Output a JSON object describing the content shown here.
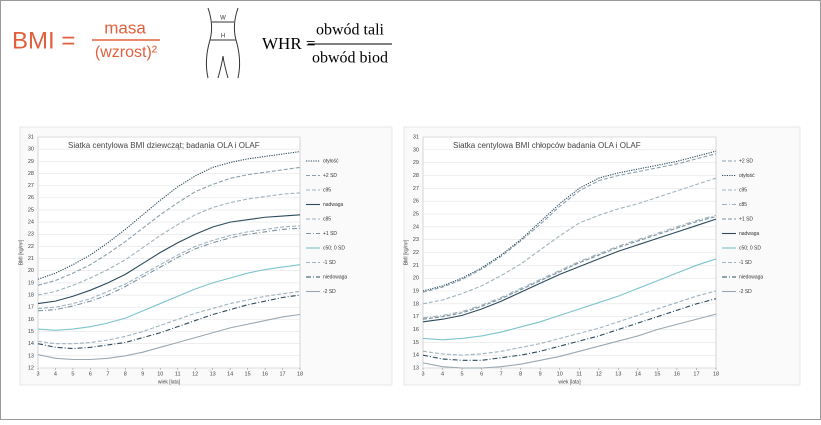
{
  "formulas": {
    "bmi_label": "BMI =",
    "bmi_numerator": "masa",
    "bmi_denominator": "(wzrost)²",
    "whr_label": "WHR =",
    "whr_numerator": "obwód tali",
    "whr_denominator": "obwód biod"
  },
  "chart_data": [
    {
      "type": "line",
      "title": "Siatka centylowa BMI dziewcząt; badania OLA i OLAF",
      "x_label": "wiek [lata]",
      "y_label": "BMI [kg/m²]",
      "x": [
        3,
        4,
        5,
        6,
        7,
        8,
        9,
        10,
        11,
        12,
        13,
        14,
        15,
        16,
        17,
        18
      ],
      "xlim": [
        3,
        18
      ],
      "xticks": [
        3,
        4,
        5,
        6,
        7,
        8,
        9,
        10,
        11,
        12,
        13,
        14,
        15,
        16,
        17,
        18
      ],
      "ylim": [
        12,
        31
      ],
      "yticks": [
        12,
        13,
        14,
        15,
        16,
        17,
        18,
        19,
        20,
        21,
        22,
        23,
        24,
        25,
        26,
        27,
        28,
        29,
        30,
        31
      ],
      "grid": true,
      "series": [
        {
          "name": "otyłość",
          "color": "#2b4a5c",
          "style": "dotted",
          "values": [
            19.3,
            19.8,
            20.5,
            21.3,
            22.3,
            23.4,
            24.6,
            25.8,
            26.9,
            27.8,
            28.5,
            28.9,
            29.2,
            29.4,
            29.6,
            29.8
          ]
        },
        {
          "name": "+2 SD",
          "color": "#8aa0ad",
          "style": "dashed",
          "values": [
            18.8,
            19.2,
            19.8,
            20.5,
            21.4,
            22.4,
            23.5,
            24.6,
            25.6,
            26.5,
            27.1,
            27.6,
            27.9,
            28.1,
            28.3,
            28.5
          ]
        },
        {
          "name": "c95",
          "color": "#9fb3be",
          "style": "dashed",
          "values": [
            18.0,
            18.3,
            18.8,
            19.4,
            20.1,
            20.9,
            21.9,
            22.9,
            23.8,
            24.6,
            25.2,
            25.6,
            25.9,
            26.1,
            26.3,
            26.4
          ]
        },
        {
          "name": "nadwaga",
          "color": "#2b4a5c",
          "style": "solid",
          "values": [
            17.3,
            17.5,
            17.9,
            18.4,
            19.0,
            19.7,
            20.6,
            21.5,
            22.3,
            23.0,
            23.6,
            24.0,
            24.2,
            24.4,
            24.5,
            24.6
          ]
        },
        {
          "name": "c85",
          "color": "#9fb3be",
          "style": "dashed",
          "values": [
            16.9,
            17.0,
            17.3,
            17.7,
            18.3,
            18.9,
            19.7,
            20.5,
            21.3,
            22.0,
            22.5,
            22.9,
            23.2,
            23.4,
            23.6,
            23.7
          ]
        },
        {
          "name": "+1 SD",
          "color": "#7d93a0",
          "style": "dashdot",
          "values": [
            16.7,
            16.8,
            17.1,
            17.5,
            18.0,
            18.7,
            19.5,
            20.3,
            21.1,
            21.8,
            22.3,
            22.7,
            23.0,
            23.2,
            23.4,
            23.5
          ]
        },
        {
          "name": "c50; 0 SD",
          "color": "#7cc4cc",
          "style": "solid",
          "values": [
            15.2,
            15.1,
            15.2,
            15.4,
            15.7,
            16.1,
            16.7,
            17.3,
            17.9,
            18.5,
            19.0,
            19.4,
            19.8,
            20.1,
            20.3,
            20.5
          ]
        },
        {
          "name": "-1 SD",
          "color": "#9fb3be",
          "style": "dashed",
          "values": [
            14.2,
            14.0,
            14.0,
            14.1,
            14.3,
            14.6,
            15.0,
            15.5,
            16.0,
            16.5,
            16.9,
            17.3,
            17.6,
            17.9,
            18.1,
            18.3
          ]
        },
        {
          "name": "niedowaga",
          "color": "#2b4a5c",
          "style": "dashdot",
          "values": [
            14.0,
            13.7,
            13.6,
            13.7,
            13.9,
            14.1,
            14.5,
            14.9,
            15.4,
            15.9,
            16.4,
            16.8,
            17.2,
            17.5,
            17.8,
            18.0
          ]
        },
        {
          "name": "-2 SD",
          "color": "#9aa8b0",
          "style": "solid",
          "values": [
            13.1,
            12.8,
            12.7,
            12.7,
            12.8,
            13.0,
            13.3,
            13.7,
            14.1,
            14.5,
            14.9,
            15.3,
            15.6,
            15.9,
            16.2,
            16.4
          ]
        }
      ]
    },
    {
      "type": "line",
      "title": "Siatka centylowa BMI chłopców badania OLA i OLAF",
      "x_label": "wiek [lata]",
      "y_label": "BMI [kg/m²]",
      "x": [
        3,
        4,
        5,
        6,
        7,
        8,
        9,
        10,
        11,
        12,
        13,
        14,
        15,
        16,
        17,
        18
      ],
      "xlim": [
        3,
        18
      ],
      "xticks": [
        3,
        4,
        5,
        6,
        7,
        8,
        9,
        10,
        11,
        12,
        13,
        14,
        15,
        16,
        17,
        18
      ],
      "ylim": [
        13,
        31
      ],
      "yticks": [
        13,
        14,
        15,
        16,
        17,
        18,
        19,
        20,
        21,
        22,
        23,
        24,
        25,
        26,
        27,
        28,
        29,
        30,
        31
      ],
      "grid": true,
      "series": [
        {
          "name": "+2 SD",
          "color": "#8aa0ad",
          "style": "dashed",
          "values": [
            18.9,
            19.3,
            19.9,
            20.7,
            21.7,
            22.9,
            24.2,
            25.6,
            26.8,
            27.6,
            28.0,
            28.3,
            28.6,
            28.9,
            29.3,
            29.7
          ]
        },
        {
          "name": "otyłość",
          "color": "#2b4a5c",
          "style": "dotted",
          "values": [
            19.0,
            19.4,
            20.0,
            20.8,
            21.8,
            23.0,
            24.4,
            25.8,
            27.0,
            27.8,
            28.2,
            28.5,
            28.8,
            29.1,
            29.5,
            29.9
          ]
        },
        {
          "name": "c95",
          "color": "#9fb3be",
          "style": "dashed",
          "values": [
            18.0,
            18.3,
            18.8,
            19.4,
            20.2,
            21.1,
            22.2,
            23.3,
            24.3,
            24.9,
            25.4,
            25.8,
            26.3,
            26.8,
            27.3,
            27.8
          ]
        },
        {
          "name": "c85",
          "color": "#9fb3be",
          "style": "dashdot",
          "values": [
            16.9,
            17.1,
            17.4,
            17.9,
            18.5,
            19.2,
            19.9,
            20.6,
            21.3,
            21.9,
            22.5,
            23.0,
            23.5,
            24.0,
            24.5,
            24.9
          ]
        },
        {
          "name": "+1 SD",
          "color": "#7d93a0",
          "style": "dashed",
          "values": [
            16.8,
            17.0,
            17.3,
            17.8,
            18.4,
            19.1,
            19.8,
            20.5,
            21.2,
            21.8,
            22.4,
            22.9,
            23.4,
            23.9,
            24.4,
            24.8
          ]
        },
        {
          "name": "nadwaga",
          "color": "#2b4a5c",
          "style": "solid",
          "values": [
            16.6,
            16.8,
            17.1,
            17.6,
            18.2,
            18.9,
            19.6,
            20.3,
            20.9,
            21.5,
            22.1,
            22.6,
            23.1,
            23.6,
            24.1,
            24.6
          ]
        },
        {
          "name": "c50; 0 SD",
          "color": "#7cc4cc",
          "style": "solid",
          "values": [
            15.3,
            15.2,
            15.3,
            15.5,
            15.8,
            16.2,
            16.6,
            17.1,
            17.6,
            18.1,
            18.6,
            19.2,
            19.8,
            20.4,
            21.0,
            21.5
          ]
        },
        {
          "name": "-1 SD",
          "color": "#9fb3be",
          "style": "dashed",
          "values": [
            14.3,
            14.1,
            14.0,
            14.1,
            14.3,
            14.6,
            14.9,
            15.3,
            15.7,
            16.1,
            16.6,
            17.1,
            17.6,
            18.1,
            18.6,
            19.0
          ]
        },
        {
          "name": "niedowaga",
          "color": "#2b4a5c",
          "style": "dashdot",
          "values": [
            14.0,
            13.7,
            13.6,
            13.6,
            13.8,
            14.0,
            14.3,
            14.7,
            15.1,
            15.5,
            16.0,
            16.5,
            17.0,
            17.5,
            18.0,
            18.4
          ]
        },
        {
          "name": "-2 SD",
          "color": "#9aa8b0",
          "style": "solid",
          "values": [
            13.4,
            13.1,
            13.0,
            13.0,
            13.1,
            13.3,
            13.6,
            13.9,
            14.3,
            14.7,
            15.1,
            15.5,
            16.0,
            16.4,
            16.8,
            17.2
          ]
        }
      ]
    }
  ]
}
